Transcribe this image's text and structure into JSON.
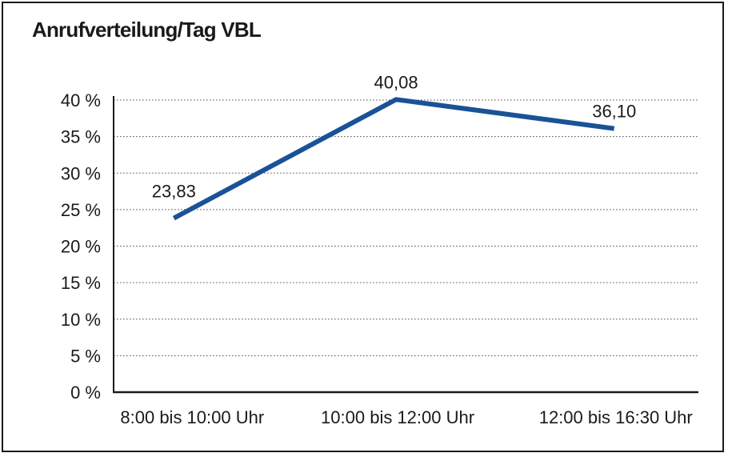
{
  "title": "Anrufverteilung/Tag VBL",
  "chart_data": {
    "type": "line",
    "title": "Anrufverteilung/Tag VBL",
    "categories": [
      "8:00 bis 10:00 Uhr",
      "10:00 bis 12:00 Uhr",
      "12:00 bis 16:30 Uhr"
    ],
    "values": [
      23.83,
      40.08,
      36.1
    ],
    "value_labels": [
      "23,83",
      "40,08",
      "36,10"
    ],
    "xlabel": "",
    "ylabel": "",
    "ylim": [
      0,
      40
    ],
    "ytick_step": 5,
    "ytick_labels": [
      "0 %",
      "5 %",
      "10 %",
      "15 %",
      "20 %",
      "25 %",
      "30 %",
      "35 %",
      "40 %"
    ],
    "grid": "horizontal-dotted",
    "legend_position": "none",
    "series_name": "Anrufverteilung"
  },
  "colors": {
    "line": "#1A5296",
    "axis": "#1a1a1a",
    "grid": "#555555",
    "border": "#1a1a1a",
    "background": "#ffffff",
    "text": "#1a1a1a"
  }
}
